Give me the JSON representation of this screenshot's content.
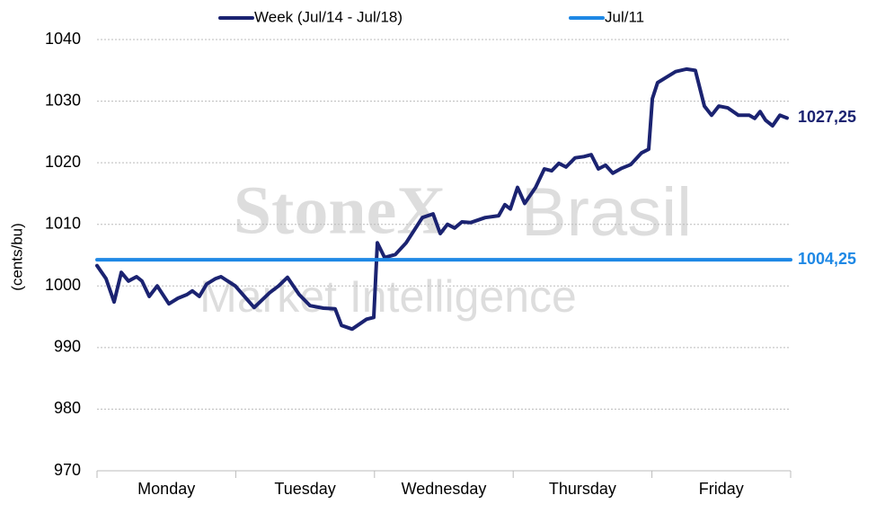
{
  "chart_data": {
    "type": "line",
    "y_label": "(cents/bu)",
    "watermark": {
      "brand": "StoneX",
      "region": "Brasil",
      "tagline": "Market Intelligence"
    },
    "categories": [
      "Monday",
      "Tuesday",
      "Wednesday",
      "Thursday",
      "Friday"
    ],
    "xlim": [
      0,
      5
    ],
    "ylim": [
      970,
      1040
    ],
    "yticks": [
      970,
      980,
      990,
      1000,
      1010,
      1020,
      1030,
      1040
    ],
    "grid": true,
    "legend": "top",
    "series": [
      {
        "name": "Week (Jul/14 - Jul/18)",
        "color": "#1b2371",
        "last_label": "1027,25",
        "x": [
          0,
          0.065,
          0.123,
          0.175,
          0.227,
          0.285,
          0.324,
          0.376,
          0.434,
          0.518,
          0.583,
          0.648,
          0.687,
          0.738,
          0.79,
          0.855,
          0.894,
          0.997,
          1.133,
          1.244,
          1.308,
          1.373,
          1.457,
          1.535,
          1.632,
          1.716,
          1.762,
          1.839,
          1.943,
          1.995,
          2.021,
          2.073,
          2.15,
          2.228,
          2.345,
          2.422,
          2.474,
          2.526,
          2.578,
          2.63,
          2.694,
          2.798,
          2.895,
          2.94,
          2.979,
          3.031,
          3.083,
          3.161,
          3.225,
          3.277,
          3.329,
          3.381,
          3.446,
          3.51,
          3.562,
          3.614,
          3.666,
          3.718,
          3.782,
          3.847,
          3.925,
          3.977,
          4.003,
          4.041,
          4.106,
          4.171,
          4.249,
          4.313,
          4.378,
          4.43,
          4.482,
          4.547,
          4.624,
          4.702,
          4.741,
          4.78,
          4.819,
          4.87,
          4.922,
          4.974
        ],
        "values": [
          1003.3,
          1001.2,
          997.4,
          1002.2,
          1000.8,
          1001.5,
          1000.8,
          998.3,
          1000.0,
          997.1,
          998.0,
          998.6,
          999.2,
          998.3,
          1000.3,
          1001.2,
          1001.5,
          1000.0,
          996.5,
          998.9,
          1000.0,
          1001.4,
          998.6,
          996.8,
          996.4,
          996.3,
          993.6,
          993.0,
          994.6,
          994.9,
          1007.0,
          1004.6,
          1005.1,
          1007.0,
          1011.1,
          1011.7,
          1008.5,
          1010.0,
          1009.4,
          1010.4,
          1010.3,
          1011.1,
          1011.4,
          1013.2,
          1012.5,
          1016.0,
          1013.4,
          1016.0,
          1019.0,
          1018.7,
          1019.9,
          1019.3,
          1020.8,
          1021.0,
          1021.3,
          1019.0,
          1019.6,
          1018.3,
          1019.1,
          1019.7,
          1021.6,
          1022.2,
          1030.4,
          1033.0,
          1033.9,
          1034.8,
          1035.2,
          1035.0,
          1029.2,
          1027.7,
          1029.2,
          1028.9,
          1027.7,
          1027.7,
          1027.2,
          1028.3,
          1026.9,
          1026.0,
          1027.7,
          1027.25
        ]
      },
      {
        "name": "Jul/11",
        "color": "#1e88e5",
        "last_label": "1004,25",
        "x": [
          0,
          5
        ],
        "values": [
          1004.25,
          1004.25
        ]
      }
    ]
  }
}
